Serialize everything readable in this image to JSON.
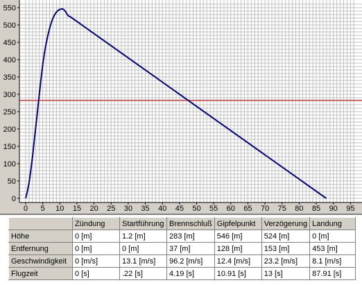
{
  "chart_data": {
    "type": "line",
    "xlim": [
      0,
      96
    ],
    "ylim": [
      0,
      560
    ],
    "x_ticks": [
      0,
      5,
      10,
      15,
      20,
      25,
      30,
      35,
      40,
      45,
      50,
      55,
      60,
      65,
      70,
      75,
      80,
      85,
      90,
      95
    ],
    "y_ticks": [
      0,
      50,
      100,
      150,
      200,
      250,
      300,
      350,
      400,
      450,
      500,
      550
    ],
    "grid": true,
    "series": [
      {
        "color": "#000080",
        "x": [
          0,
          0.5,
          1,
          1.5,
          2,
          2.5,
          3,
          3.5,
          4,
          4.5,
          5,
          5.5,
          6,
          6.5,
          7,
          7.5,
          8,
          8.5,
          9,
          9.5,
          10,
          10.5,
          10.91,
          11.3,
          11.7,
          12.1,
          12.5,
          13,
          87.91
        ],
        "y": [
          0,
          20,
          45,
          80,
          120,
          165,
          210,
          255,
          300,
          345,
          385,
          420,
          447,
          470,
          490,
          507,
          520,
          530,
          537,
          542,
          545,
          546,
          546,
          543,
          538,
          531,
          526,
          524,
          0
        ]
      }
    ],
    "reference_line": {
      "y": 283,
      "color": "#ff0000"
    }
  },
  "table": {
    "headers": [
      "",
      "Zündung",
      "Startführung",
      "Brennschluß",
      "Gipfelpunkt",
      "Verzögerung",
      "Landung"
    ],
    "rows": [
      {
        "label": "Höhe",
        "values": [
          "0 [m]",
          "1.2 [m]",
          "283 [m]",
          "546 [m]",
          "524 [m]",
          "0 [m]"
        ]
      },
      {
        "label": "Entfernung",
        "values": [
          "0 [m]",
          "0 [m]",
          "37 [m]",
          "128 [m]",
          "153 [m]",
          "453 [m]"
        ]
      },
      {
        "label": "Geschwindigkeit",
        "values": [
          "0 [m/s]",
          "13.1 [m/s]",
          "96.2 [m/s]",
          "12.4 [m/s]",
          "23.2 [m/s]",
          "8.1 [m/s]"
        ]
      },
      {
        "label": "Flugzeit",
        "values": [
          "0 [s]",
          ".22 [s]",
          "4.19 [s]",
          "10.91 [s]",
          "13 [s]",
          "87.91 [s]"
        ]
      }
    ]
  }
}
